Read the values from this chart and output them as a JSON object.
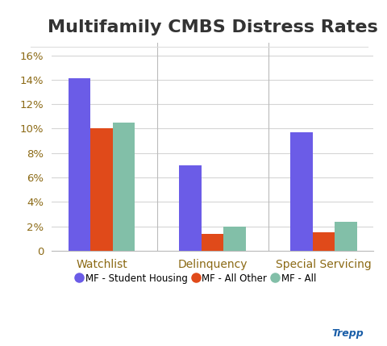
{
  "title": "Multifamily CMBS Distress Rates",
  "categories": [
    "Watchlist",
    "Delinquency",
    "Special Servicing"
  ],
  "series": [
    {
      "name": "MF - Student Housing",
      "color": "#6b5ce7",
      "values": [
        14.1,
        7.0,
        9.7
      ]
    },
    {
      "name": "MF - All Other",
      "color": "#e04a1a",
      "values": [
        10.0,
        1.4,
        1.5
      ]
    },
    {
      "name": "MF - All",
      "color": "#82bfa8",
      "values": [
        10.5,
        2.0,
        2.4
      ]
    }
  ],
  "ylim": [
    0,
    17
  ],
  "yticks": [
    0,
    2,
    4,
    6,
    8,
    10,
    12,
    14,
    16
  ],
  "ytick_labels": [
    "0",
    "2%",
    "4%",
    "6%",
    "8%",
    "10%",
    "12%",
    "14%",
    "16%"
  ],
  "background_color": "#ffffff",
  "grid_color": "#d5d5d5",
  "title_fontsize": 16,
  "title_color": "#333333",
  "tick_color": "#8b6914",
  "watermark": "Trepp",
  "watermark_color": "#1a5ea8"
}
